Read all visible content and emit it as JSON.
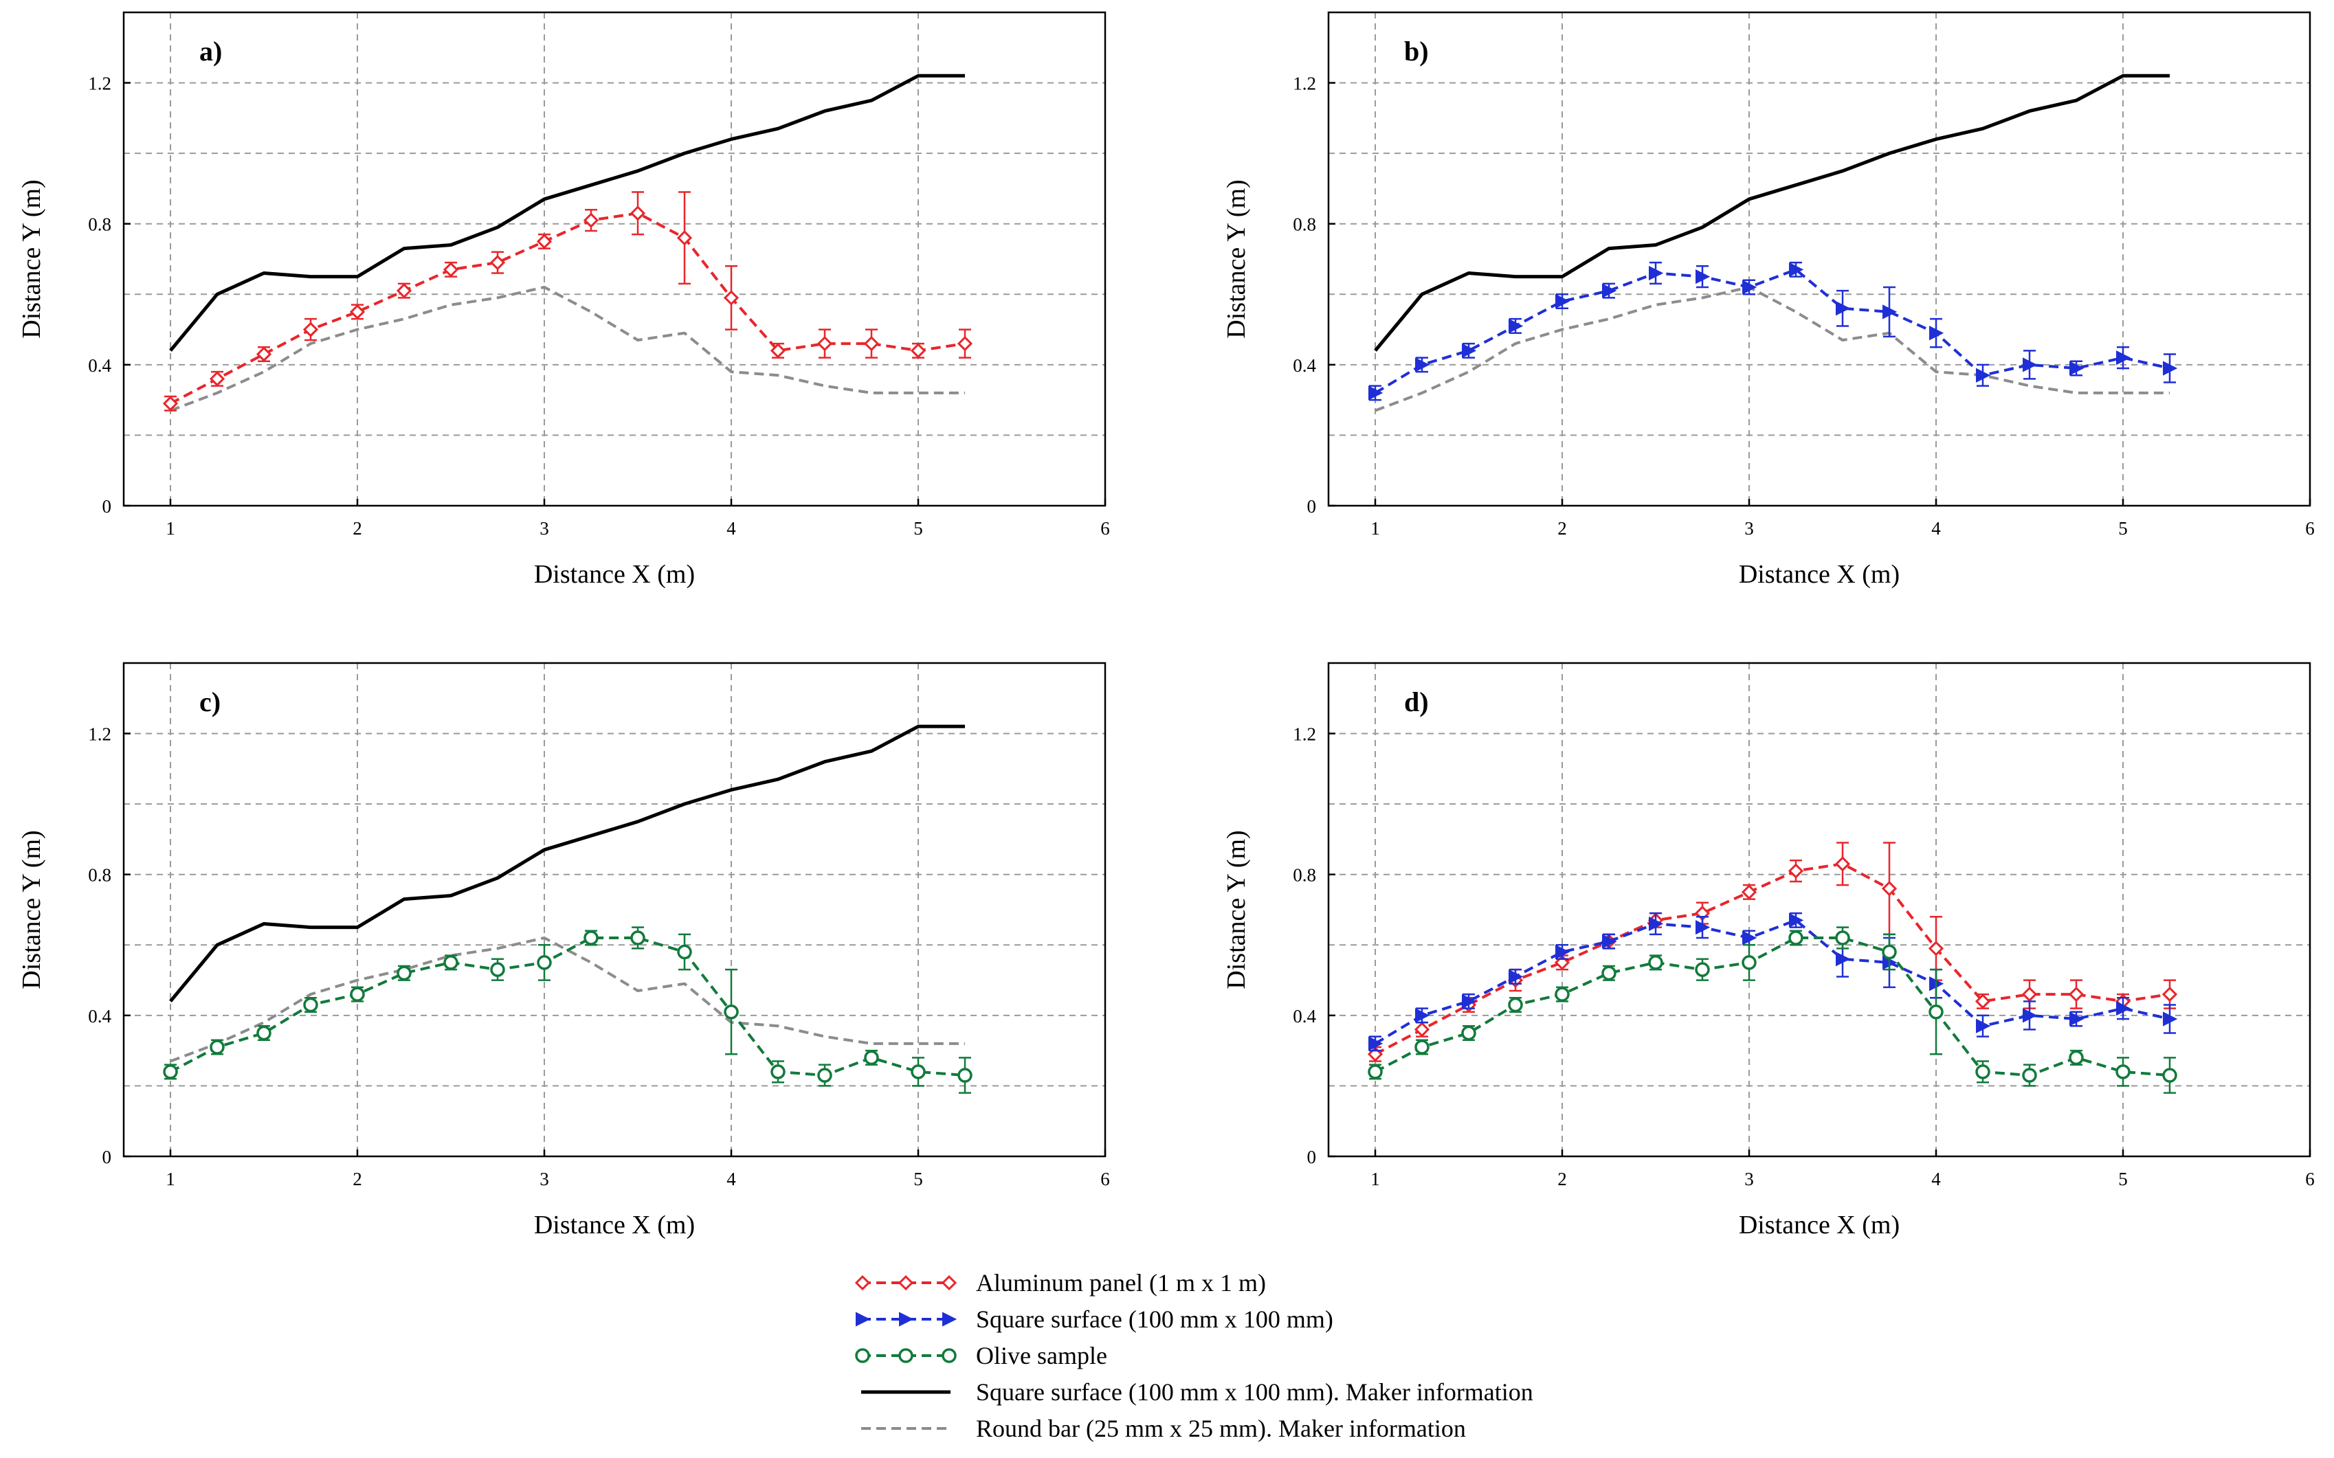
{
  "figure": {
    "legend_position": "bottom-center"
  },
  "series_styles": {
    "aluminum": {
      "color": "#e8262b",
      "marker": "diamond",
      "dash": "dashed"
    },
    "square_surface": {
      "color": "#1f2fd6",
      "marker": "triangle-right",
      "dash": "dashed"
    },
    "olive": {
      "color": "#127a3c",
      "marker": "circle",
      "dash": "dashed"
    },
    "maker_square": {
      "color": "#000000",
      "marker": "none",
      "dash": "solid"
    },
    "maker_round": {
      "color": "#8c8c8c",
      "marker": "none",
      "dash": "dashed"
    }
  },
  "legend": [
    {
      "key": "aluminum",
      "label": "Aluminum panel (1 m x 1 m)"
    },
    {
      "key": "square_surface",
      "label": "Square surface (100 mm x 100 mm)"
    },
    {
      "key": "olive",
      "label": "Olive sample"
    },
    {
      "key": "maker_square",
      "label": "Square surface (100 mm x 100 mm). Maker information"
    },
    {
      "key": "maker_round",
      "label": "Round bar (25 mm x 25 mm). Maker information"
    }
  ],
  "chart_data": [
    {
      "type": "line",
      "panel": "a)",
      "xlabel": "Distance X (m)",
      "ylabel": "Distance Y (m)",
      "xlim": [
        0.75,
        6
      ],
      "ylim": [
        0,
        1.4
      ],
      "xticks": [
        1,
        2,
        3,
        4,
        5,
        6
      ],
      "yticks": [
        0,
        0.4,
        0.8,
        1.2
      ],
      "ytick_labels": [
        "0",
        "0.4",
        "0.8",
        "1.2"
      ],
      "grid": true,
      "series_keys": [
        "maker_square",
        "maker_round",
        "aluminum"
      ]
    },
    {
      "type": "line",
      "panel": "b)",
      "xlabel": "Distance X (m)",
      "ylabel": "Distance Y (m)",
      "xlim": [
        0.75,
        6
      ],
      "ylim": [
        0,
        1.4
      ],
      "xticks": [
        1,
        2,
        3,
        4,
        5,
        6
      ],
      "yticks": [
        0,
        0.4,
        0.8,
        1.2
      ],
      "ytick_labels": [
        "0",
        "0.4",
        "0.8",
        "1.2"
      ],
      "grid": true,
      "series_keys": [
        "maker_square",
        "maker_round",
        "square_surface"
      ]
    },
    {
      "type": "line",
      "panel": "c)",
      "xlabel": "Distance X (m)",
      "ylabel": "Distance Y (m)",
      "xlim": [
        0.75,
        6
      ],
      "ylim": [
        0,
        1.4
      ],
      "xticks": [
        1,
        2,
        3,
        4,
        5,
        6
      ],
      "yticks": [
        0,
        0.4,
        0.8,
        1.2
      ],
      "ytick_labels": [
        "0",
        "0.4",
        "0.8",
        "1.2"
      ],
      "grid": true,
      "series_keys": [
        "maker_square",
        "maker_round",
        "olive"
      ]
    },
    {
      "type": "line",
      "panel": "d)",
      "xlabel": "Distance X (m)",
      "ylabel": "Distance Y (m)",
      "xlim": [
        0.75,
        6
      ],
      "ylim": [
        0,
        1.4
      ],
      "xticks": [
        1,
        2,
        3,
        4,
        5,
        6
      ],
      "yticks": [
        0,
        0.4,
        0.8,
        1.2
      ],
      "ytick_labels": [
        "0",
        "0.4",
        "0.8",
        "1.2"
      ],
      "grid": true,
      "series_keys": [
        "aluminum",
        "square_surface",
        "olive"
      ]
    }
  ],
  "series_data": {
    "maker_square": {
      "x": [
        1,
        1.25,
        1.5,
        1.75,
        2,
        2.25,
        2.5,
        2.75,
        3,
        3.25,
        3.5,
        3.75,
        4,
        4.25,
        4.5,
        4.75,
        5,
        5.25
      ],
      "y": [
        0.44,
        0.6,
        0.66,
        0.65,
        0.65,
        0.73,
        0.74,
        0.79,
        0.87,
        0.91,
        0.95,
        1.0,
        1.04,
        1.07,
        1.12,
        1.15,
        1.22,
        1.22
      ]
    },
    "maker_round": {
      "x": [
        1,
        1.25,
        1.5,
        1.75,
        2,
        2.25,
        2.5,
        2.75,
        3,
        3.25,
        3.5,
        3.75,
        4,
        4.25,
        4.5,
        4.75,
        5,
        5.25
      ],
      "y": [
        0.27,
        0.32,
        0.38,
        0.46,
        0.5,
        0.53,
        0.57,
        0.59,
        0.62,
        0.55,
        0.47,
        0.49,
        0.38,
        0.37,
        0.34,
        0.32,
        0.32,
        0.32
      ]
    },
    "aluminum": {
      "x": [
        1,
        1.25,
        1.5,
        1.75,
        2,
        2.25,
        2.5,
        2.75,
        3,
        3.25,
        3.5,
        3.75,
        4,
        4.25,
        4.5,
        4.75,
        5,
        5.25
      ],
      "y": [
        0.29,
        0.36,
        0.43,
        0.5,
        0.55,
        0.61,
        0.67,
        0.69,
        0.75,
        0.81,
        0.83,
        0.76,
        0.59,
        0.44,
        0.46,
        0.46,
        0.44,
        0.46
      ],
      "err": [
        0.02,
        0.02,
        0.02,
        0.03,
        0.02,
        0.02,
        0.02,
        0.03,
        0.02,
        0.03,
        0.06,
        0.13,
        0.09,
        0.02,
        0.04,
        0.04,
        0.02,
        0.04
      ]
    },
    "square_surface": {
      "x": [
        1,
        1.25,
        1.5,
        1.75,
        2,
        2.25,
        2.5,
        2.75,
        3,
        3.25,
        3.5,
        3.75,
        4,
        4.25,
        4.5,
        4.75,
        5,
        5.25
      ],
      "y": [
        0.32,
        0.4,
        0.44,
        0.51,
        0.58,
        0.61,
        0.66,
        0.65,
        0.62,
        0.67,
        0.56,
        0.55,
        0.49,
        0.37,
        0.4,
        0.39,
        0.42,
        0.39
      ],
      "err": [
        0.02,
        0.02,
        0.02,
        0.02,
        0.02,
        0.02,
        0.03,
        0.03,
        0.02,
        0.02,
        0.05,
        0.07,
        0.04,
        0.03,
        0.04,
        0.02,
        0.03,
        0.04
      ]
    },
    "olive": {
      "x": [
        1,
        1.25,
        1.5,
        1.75,
        2,
        2.25,
        2.5,
        2.75,
        3,
        3.25,
        3.5,
        3.75,
        4,
        4.25,
        4.5,
        4.75,
        5,
        5.25
      ],
      "y": [
        0.24,
        0.31,
        0.35,
        0.43,
        0.46,
        0.52,
        0.55,
        0.53,
        0.55,
        0.62,
        0.62,
        0.58,
        0.41,
        0.24,
        0.23,
        0.28,
        0.24,
        0.23
      ],
      "err": [
        0.02,
        0.02,
        0.02,
        0.02,
        0.02,
        0.02,
        0.02,
        0.03,
        0.05,
        0.02,
        0.03,
        0.05,
        0.12,
        0.03,
        0.03,
        0.02,
        0.04,
        0.05
      ]
    }
  }
}
